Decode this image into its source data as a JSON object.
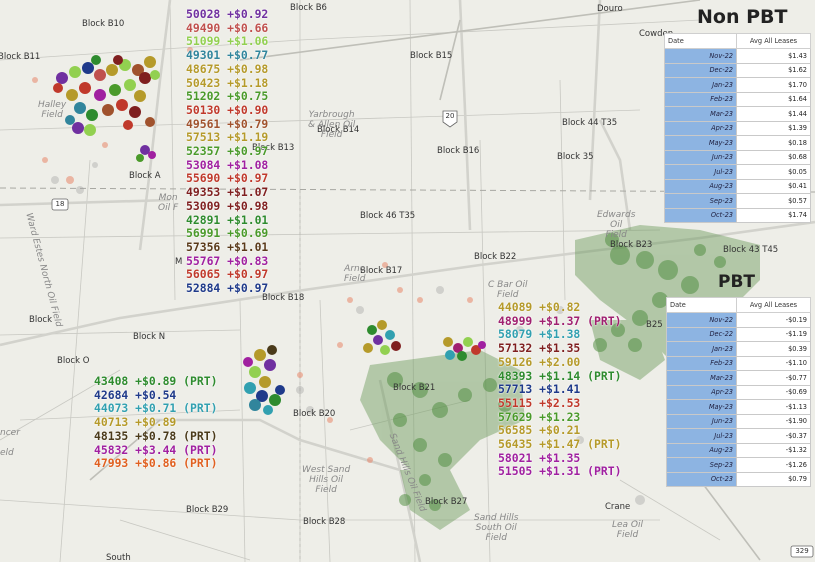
{
  "map_labels": [
    {
      "id": "block-b10",
      "text": "Block B10"
    },
    {
      "id": "block-b6",
      "text": "Block B6"
    },
    {
      "id": "block-b11",
      "text": "Block B11"
    },
    {
      "id": "block-b15",
      "text": "Block B15"
    },
    {
      "id": "block-b14",
      "text": "Block B14"
    },
    {
      "id": "block-b13",
      "text": "Block B13"
    },
    {
      "id": "block-b16",
      "text": "Block B16"
    },
    {
      "id": "block-a",
      "text": "Block A"
    },
    {
      "id": "block-44-t35",
      "text": "Block 44 T35"
    },
    {
      "id": "block-35",
      "text": "Block 35"
    },
    {
      "id": "block-46-t35",
      "text": "Block 46 T35"
    },
    {
      "id": "block-b22",
      "text": "Block B22"
    },
    {
      "id": "block-b23",
      "text": "Block B23"
    },
    {
      "id": "block-43-t45",
      "text": "Block 43 T45"
    },
    {
      "id": "block-b17",
      "text": "Block B17"
    },
    {
      "id": "block-b18",
      "text": "Block B18"
    },
    {
      "id": "block-n",
      "text": "Block N"
    },
    {
      "id": "block-o",
      "text": "Block O"
    },
    {
      "id": "block-plain",
      "text": "Block"
    },
    {
      "id": "block-b20",
      "text": "Block B20"
    },
    {
      "id": "block-b21",
      "text": "Block B21"
    },
    {
      "id": "block-b27",
      "text": "Block B27"
    },
    {
      "id": "block-b29",
      "text": "Block B29"
    },
    {
      "id": "block-b28",
      "text": "Block B28"
    },
    {
      "id": "block-b25",
      "text": "B25"
    },
    {
      "id": "douro",
      "text": "Douro"
    },
    {
      "id": "cowden",
      "text": "Cowden"
    },
    {
      "id": "crane",
      "text": "Crane"
    },
    {
      "id": "south",
      "text": "South"
    },
    {
      "id": "m-label",
      "text": "M"
    },
    {
      "id": "halley-field",
      "text": "Halley\nField"
    },
    {
      "id": "yarbrough-field",
      "text": "Yarbrough\n& Allen Oil\nField"
    },
    {
      "id": "edwards-field",
      "text": "Edwards\nOil\nField"
    },
    {
      "id": "cbar-field",
      "text": "C Bar Oil\nField"
    },
    {
      "id": "arno-field",
      "text": "Arno\nField"
    },
    {
      "id": "mon-oil",
      "text": "Mon\nOil F"
    },
    {
      "id": "west-sand-hills",
      "text": "West Sand\nHills Oil\nField"
    },
    {
      "id": "sand-hills-south",
      "text": "Sand Hills\nSouth Oil\nField"
    },
    {
      "id": "lea-oil-field",
      "text": "Lea Oil\nField"
    },
    {
      "id": "ward-estes-north",
      "text": "Ward Estes North Oil Field"
    },
    {
      "id": "sand-hills-field",
      "text": "Sand Hills Oil Field"
    },
    {
      "id": "spencer",
      "text": "ncer"
    },
    {
      "id": "eld",
      "text": "eld"
    }
  ],
  "shields": [
    {
      "id": "hwy-18",
      "text": "18"
    },
    {
      "id": "hwy-20",
      "text": "20"
    },
    {
      "id": "hwy-329",
      "text": "329"
    }
  ],
  "annotation_groups": [
    {
      "id": "group-top-left",
      "items": [
        {
          "text": "50028 +$0.92",
          "color": "#7030a0"
        },
        {
          "text": "49490 +$0.66",
          "color": "#c0504d"
        },
        {
          "text": "51099 +$1.06",
          "color": "#92d050"
        },
        {
          "text": "49301 +$0.77",
          "color": "#31859c"
        },
        {
          "text": "48675 +$0.98",
          "color": "#b59a2a"
        },
        {
          "text": "50423 +$1.18",
          "color": "#b59a2a"
        },
        {
          "text": "51202  +$0.75",
          "color": "#4a9a2a"
        },
        {
          "text": "50130 +$0.90",
          "color": "#c0392b"
        },
        {
          "text": "49561 +$0.79",
          "color": "#a0522d"
        },
        {
          "text": "57513 +$1.19",
          "color": "#b59a2a"
        },
        {
          "text": "52357 +$0.97",
          "color": "#4a9a2a"
        },
        {
          "text": "53084 +$1.08",
          "color": "#a020a0"
        },
        {
          "text": "55690 +$0.97",
          "color": "#c0392b"
        },
        {
          "text": "49353 +$1.07",
          "color": "#7f1f1f"
        },
        {
          "text": "53009 +$0.98",
          "color": "#7f1f1f"
        },
        {
          "text": "42891 +$1.01",
          "color": "#2e8b2e"
        },
        {
          "text": "56991 +$0.69",
          "color": "#4a9a2a"
        },
        {
          "text": "57356 +$1.01",
          "color": "#5a3a1a"
        },
        {
          "text": "55767 +$0.83",
          "color": "#a020a0"
        },
        {
          "text": "56065 +$0.97",
          "color": "#c0392b"
        },
        {
          "text": "52884 +$0.97",
          "color": "#1f3a8a"
        }
      ]
    },
    {
      "id": "group-bottom-left",
      "items": [
        {
          "text": "43408 +$0.89 (PRT)",
          "color": "#2e8b2e"
        },
        {
          "text": "42684 +$0.54",
          "color": "#1f3a8a"
        },
        {
          "text": "44073  +$0.71 (PRT)",
          "color": "#31a0b0"
        },
        {
          "text": "40713 +$0.89",
          "color": "#b59a2a"
        },
        {
          "text": "48135 +$0.78 (PRT)",
          "color": "#4a3a1a"
        },
        {
          "text": "45832 +$3.44 (PRT)",
          "color": "#a020a0"
        },
        {
          "text": "47993 +$0.86 (PRT)",
          "color": "#e06020"
        }
      ]
    },
    {
      "id": "group-center-right",
      "items": [
        {
          "text": "44089 +$0.82",
          "color": "#b59a2a"
        },
        {
          "text": "48999 +$1.37 (PRT)",
          "color": "#a02070"
        },
        {
          "text": "58079 +$1.38",
          "color": "#31a0b0"
        },
        {
          "text": "57132 +$1.35",
          "color": "#7f1f1f"
        },
        {
          "text": "59126 +$2.00",
          "color": "#b59a2a"
        },
        {
          "text": "48393 +$1.14 (PRT)",
          "color": "#2e8b2e"
        },
        {
          "text": "57713 +$1.41",
          "color": "#1f3a8a"
        },
        {
          "text": "55115 +$2.53",
          "color": "#c0392b"
        },
        {
          "text": "57629 +$1.23",
          "color": "#4a9a2a"
        },
        {
          "text": "56585 +$0.21",
          "color": "#b59a2a"
        },
        {
          "text": "56435 +$1.47 (PRT)",
          "color": "#b59a2a"
        },
        {
          "text": "58021 +$1.35",
          "color": "#a020a0"
        },
        {
          "text": "51505 +$1.31 (PRT)",
          "color": "#a020a0"
        }
      ]
    }
  ],
  "non_pbt_panel": {
    "title": "Non PBT",
    "col_date": "Date",
    "col_value": "Avg All Leases",
    "rows": [
      {
        "date": "Nov-22",
        "value": "$1.43"
      },
      {
        "date": "Dec-22",
        "value": "$1.62"
      },
      {
        "date": "Jan-23",
        "value": "$1.70"
      },
      {
        "date": "Feb-23",
        "value": "$1.64"
      },
      {
        "date": "Mar-23",
        "value": "$1.44"
      },
      {
        "date": "Apr-23",
        "value": "$1.39"
      },
      {
        "date": "May-23",
        "value": "$0.18"
      },
      {
        "date": "Jun-23",
        "value": "$0.68"
      },
      {
        "date": "Jul-23",
        "value": "$0.05"
      },
      {
        "date": "Aug-23",
        "value": "$0.41"
      },
      {
        "date": "Sep-23",
        "value": "$0.57"
      },
      {
        "date": "Oct-23",
        "value": "$1.74"
      }
    ]
  },
  "pbt_panel": {
    "title": "PBT",
    "col_date": "Date",
    "col_value": "Avg All Leases",
    "rows": [
      {
        "date": "Nov-22",
        "value": "-$0.19"
      },
      {
        "date": "Dec-22",
        "value": "-$1.19"
      },
      {
        "date": "Jan-23",
        "value": "$0.39"
      },
      {
        "date": "Feb-23",
        "value": "-$1.10"
      },
      {
        "date": "Mar-23",
        "value": "-$0.77"
      },
      {
        "date": "Apr-23",
        "value": "-$0.69"
      },
      {
        "date": "May-23",
        "value": "-$1.13"
      },
      {
        "date": "Jun-23",
        "value": "-$1.90"
      },
      {
        "date": "Jul-23",
        "value": "-$0.37"
      },
      {
        "date": "Aug-23",
        "value": "-$1.32"
      },
      {
        "date": "Sep-23",
        "value": "-$1.26"
      },
      {
        "date": "Oct-23",
        "value": "$0.79"
      }
    ]
  }
}
